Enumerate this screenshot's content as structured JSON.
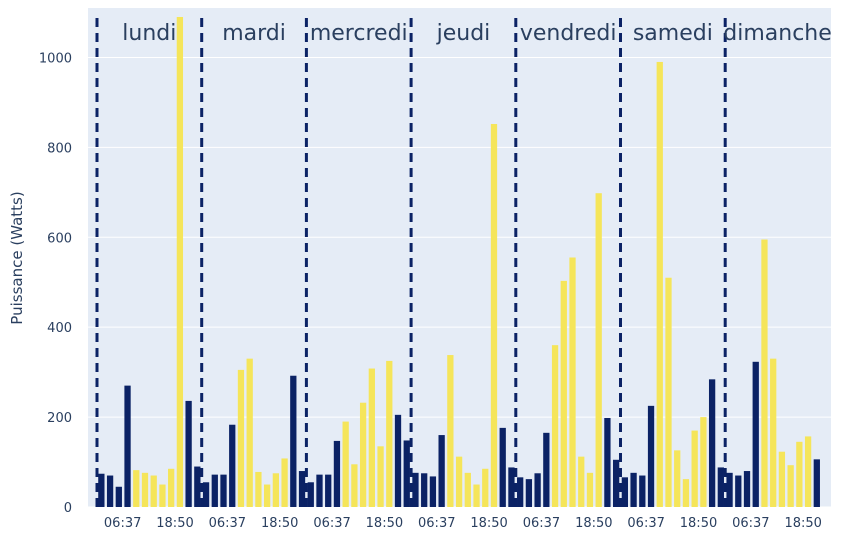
{
  "chart_data": {
    "type": "bar",
    "title": "",
    "ylabel": "Puissance (Watts)",
    "xlabel": "",
    "ylim": [
      0,
      1110
    ],
    "yticks": [
      0,
      200,
      400,
      600,
      800,
      1000
    ],
    "grid": true,
    "legend": "none",
    "colors": {
      "background": "#e5ecf6",
      "grid": "#ffffff",
      "night": "#0b2265",
      "day": "#f5e55a",
      "separator": "#0b2265"
    },
    "xtick_labels": [
      "06:37",
      "18:50"
    ],
    "days": [
      {
        "label": "lundi",
        "values": [
          74,
          70,
          45,
          270,
          82,
          76,
          70,
          50,
          85,
          1090,
          236,
          90
        ]
      },
      {
        "label": "mardi",
        "values": [
          55,
          72,
          72,
          183,
          305,
          330,
          78,
          50,
          75,
          108,
          292,
          80
        ]
      },
      {
        "label": "mercredi",
        "values": [
          55,
          72,
          72,
          147,
          190,
          95,
          232,
          308,
          135,
          325,
          205,
          148
        ]
      },
      {
        "label": "jeudi",
        "values": [
          76,
          75,
          68,
          160,
          338,
          112,
          76,
          50,
          85,
          852,
          176,
          88
        ]
      },
      {
        "label": "vendredi",
        "values": [
          66,
          62,
          75,
          165,
          360,
          503,
          555,
          112,
          76,
          698,
          198,
          105
        ]
      },
      {
        "label": "samedi",
        "values": [
          66,
          76,
          70,
          225,
          990,
          510,
          126,
          62,
          170,
          200,
          284,
          88
        ]
      },
      {
        "label": "dimanche",
        "values": [
          76,
          70,
          80,
          323,
          595,
          330,
          123,
          93,
          145,
          157,
          106,
          0
        ]
      }
    ],
    "day_hours_index": [
      4,
      5,
      6,
      7,
      8,
      9
    ]
  }
}
